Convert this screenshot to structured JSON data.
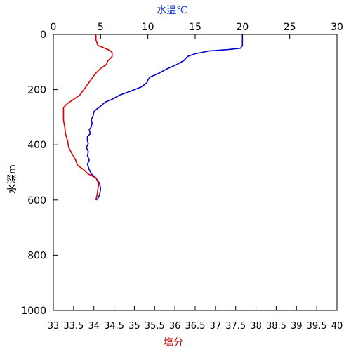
{
  "chart_data": {
    "type": "line",
    "y_axis": {
      "label": "水深m",
      "range": [
        0,
        1000
      ],
      "inverted": true,
      "ticks": [
        0,
        200,
        400,
        600,
        800,
        1000
      ]
    },
    "x_top_axis": {
      "label": "水温℃",
      "range": [
        0,
        30
      ],
      "ticks": [
        0,
        5,
        10,
        15,
        20,
        25,
        30
      ],
      "color": "#1f3fbf"
    },
    "x_bottom_axis": {
      "label": "塩分",
      "range": [
        33,
        40
      ],
      "ticks": [
        33,
        33.5,
        34,
        34.5,
        35,
        35.5,
        36,
        36.5,
        37,
        37.5,
        38,
        38.5,
        39,
        39.5,
        40
      ],
      "tick_labels": [
        "33",
        "33.5",
        "34",
        "34.5",
        "35",
        "35.5",
        "36",
        "36.5",
        "37",
        "37.5",
        "38",
        "38.5",
        "39",
        "39.5",
        "40"
      ],
      "color": "#cc0000"
    },
    "grid": false,
    "series": [
      {
        "axis": "top",
        "color": "#0000cc",
        "points": [
          [
            20.0,
            0
          ],
          [
            20.0,
            40
          ],
          [
            19.8,
            50
          ],
          [
            18.5,
            55
          ],
          [
            16.5,
            60
          ],
          [
            15.0,
            70
          ],
          [
            14.2,
            80
          ],
          [
            13.8,
            95
          ],
          [
            13.0,
            110
          ],
          [
            12.0,
            125
          ],
          [
            11.2,
            140
          ],
          [
            10.2,
            155
          ],
          [
            10.0,
            165
          ],
          [
            9.9,
            175
          ],
          [
            9.3,
            190
          ],
          [
            8.2,
            205
          ],
          [
            7.0,
            220
          ],
          [
            6.2,
            235
          ],
          [
            5.5,
            245
          ],
          [
            5.0,
            260
          ],
          [
            4.6,
            270
          ],
          [
            4.3,
            280
          ],
          [
            4.2,
            295
          ],
          [
            4.0,
            310
          ],
          [
            4.1,
            320
          ],
          [
            4.0,
            335
          ],
          [
            3.8,
            345
          ],
          [
            3.9,
            360
          ],
          [
            3.6,
            370
          ],
          [
            3.6,
            385
          ],
          [
            3.7,
            395
          ],
          [
            3.5,
            410
          ],
          [
            3.7,
            425
          ],
          [
            3.6,
            440
          ],
          [
            3.8,
            455
          ],
          [
            3.6,
            470
          ],
          [
            3.7,
            480
          ],
          [
            3.8,
            490
          ],
          [
            4.0,
            505
          ],
          [
            4.5,
            520
          ],
          [
            4.9,
            540
          ],
          [
            5.0,
            560
          ],
          [
            4.9,
            580
          ],
          [
            4.7,
            595
          ],
          [
            4.5,
            600
          ]
        ]
      },
      {
        "axis": "bottom",
        "color": "#dd0000",
        "points": [
          [
            34.05,
            0
          ],
          [
            34.05,
            20
          ],
          [
            34.1,
            40
          ],
          [
            34.35,
            55
          ],
          [
            34.45,
            65
          ],
          [
            34.45,
            80
          ],
          [
            34.35,
            95
          ],
          [
            34.3,
            110
          ],
          [
            34.15,
            125
          ],
          [
            34.05,
            140
          ],
          [
            33.95,
            160
          ],
          [
            33.85,
            180
          ],
          [
            33.75,
            200
          ],
          [
            33.65,
            220
          ],
          [
            33.5,
            235
          ],
          [
            33.35,
            250
          ],
          [
            33.25,
            265
          ],
          [
            33.25,
            285
          ],
          [
            33.25,
            310
          ],
          [
            33.28,
            335
          ],
          [
            33.3,
            360
          ],
          [
            33.35,
            385
          ],
          [
            33.38,
            410
          ],
          [
            33.45,
            430
          ],
          [
            33.55,
            455
          ],
          [
            33.6,
            475
          ],
          [
            33.75,
            490
          ],
          [
            33.85,
            505
          ],
          [
            34.05,
            520
          ],
          [
            34.12,
            540
          ],
          [
            34.1,
            560
          ],
          [
            34.08,
            580
          ],
          [
            34.05,
            600
          ]
        ]
      }
    ]
  }
}
